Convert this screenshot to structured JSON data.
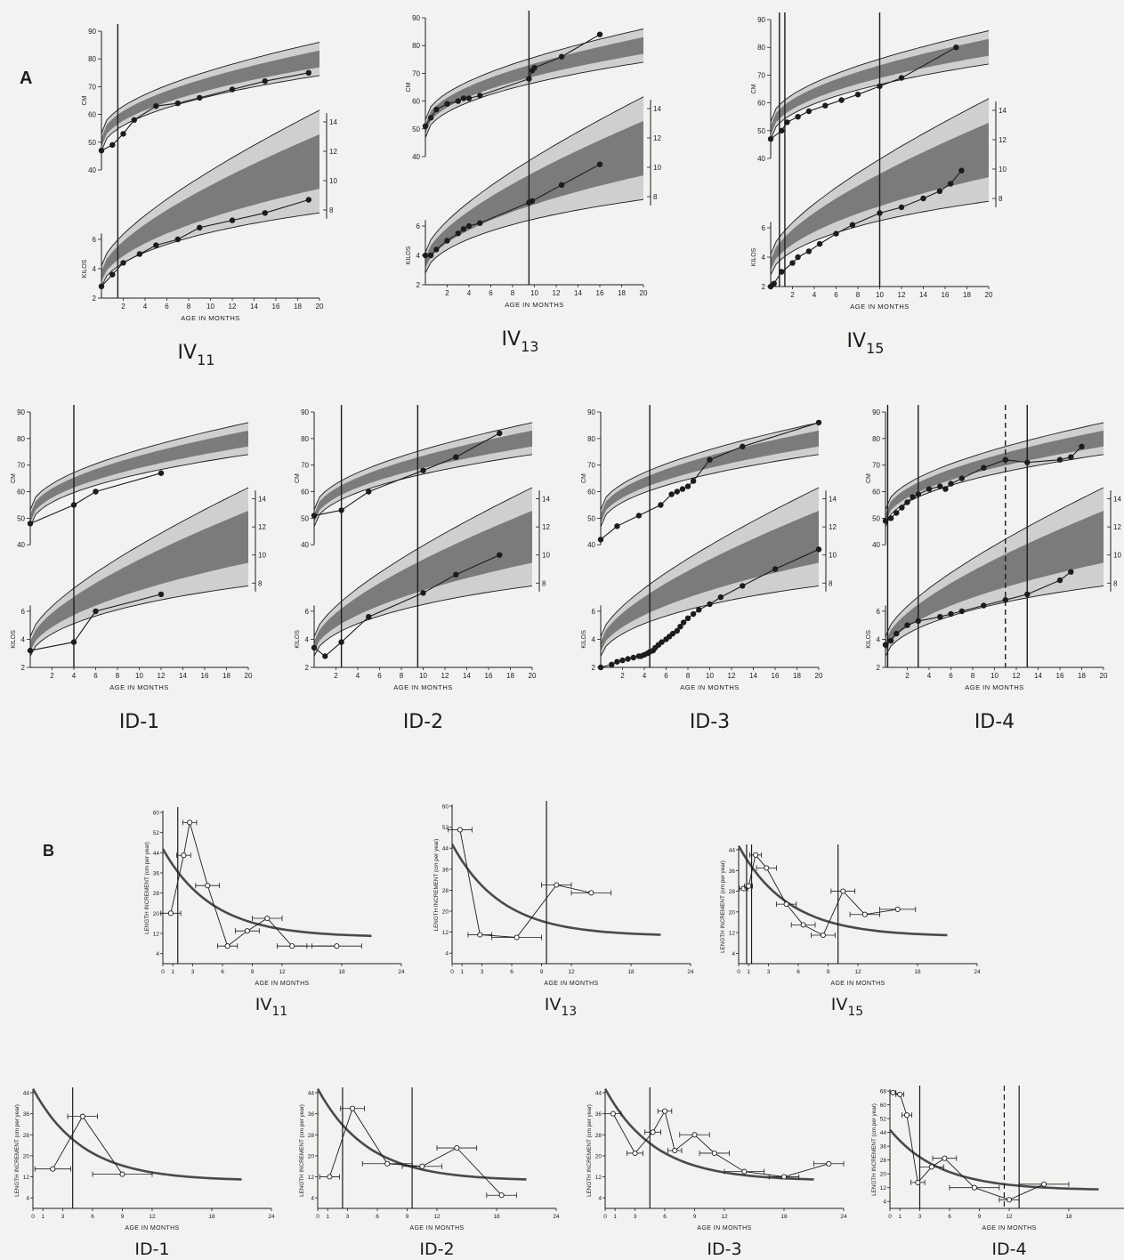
{
  "figure": {
    "panel_a_label": "A",
    "panel_b_label": "B",
    "colors": {
      "ink": "#1c1c1c",
      "band_outer": "#cfcfcd",
      "band_inner": "#7b7b79",
      "background": "#f2f2f0",
      "reference_curve": "#4a4a4a"
    }
  },
  "common": {
    "a_xlabel": "AGE IN MONTHS",
    "a_length_label": "CM",
    "a_weight_label": "KILOS",
    "a_x_ticks": [
      2,
      4,
      6,
      8,
      10,
      12,
      14,
      16,
      18,
      20
    ],
    "a_length_ticks": [
      40,
      50,
      60,
      70,
      80,
      90
    ],
    "a_weight_left_ticks": [
      2,
      4,
      6
    ],
    "a_weight_right_ticks": [
      8,
      10,
      12,
      14
    ],
    "b_xlabel": "AGE IN MONTHS",
    "b_ylabel": "LENGTH INCREMENT (cm per year)",
    "b_x_ticks": [
      0,
      1,
      3,
      6,
      9,
      12,
      18,
      24
    ]
  },
  "chart_data": [
    {
      "panel": "A",
      "name": "IV11",
      "type": "line",
      "title_main": "IV",
      "title_sub": "11",
      "grid": false,
      "xlim": [
        0,
        20
      ],
      "ylim_length": [
        40,
        90
      ],
      "ylim_weight": [
        2,
        14
      ],
      "vlines": [
        {
          "x": 1.5,
          "style": "solid"
        }
      ],
      "series": [
        {
          "metric": "length",
          "unit": "cm",
          "x": [
            0,
            1,
            2,
            3,
            5,
            7,
            9,
            12,
            15,
            19
          ],
          "y": [
            47,
            49,
            53,
            58,
            63,
            64,
            66,
            69,
            72,
            75
          ]
        },
        {
          "metric": "weight",
          "unit": "kg",
          "x": [
            0,
            1,
            2,
            3.5,
            5,
            7,
            9,
            12,
            15,
            19
          ],
          "y": [
            2.8,
            3.6,
            4.4,
            5.0,
            5.6,
            6.0,
            6.8,
            7.3,
            7.8,
            8.7
          ]
        }
      ]
    },
    {
      "panel": "A",
      "name": "IV13",
      "type": "line",
      "title_main": "IV",
      "title_sub": "13",
      "grid": false,
      "xlim": [
        0,
        20
      ],
      "ylim_length": [
        40,
        90
      ],
      "ylim_weight": [
        2,
        14
      ],
      "vlines": [
        {
          "x": 9.5,
          "style": "solid"
        }
      ],
      "series": [
        {
          "metric": "length",
          "unit": "cm",
          "x": [
            0,
            0.5,
            1,
            2,
            3,
            3.5,
            4,
            5,
            9.5,
            9.8,
            10,
            12.5,
            16
          ],
          "y": [
            51,
            54,
            57,
            59,
            60,
            61,
            61,
            62,
            68,
            71,
            72,
            76,
            84
          ]
        },
        {
          "metric": "weight",
          "unit": "kg",
          "x": [
            0,
            0.5,
            1,
            2,
            3,
            3.5,
            4,
            5,
            9.5,
            9.8,
            12.5,
            16
          ],
          "y": [
            4.0,
            4.0,
            4.4,
            5.0,
            5.5,
            5.8,
            6.0,
            6.2,
            7.6,
            7.7,
            8.8,
            10.2
          ]
        }
      ]
    },
    {
      "panel": "A",
      "name": "IV15",
      "type": "line",
      "title_main": "IV",
      "title_sub": "15",
      "grid": false,
      "xlim": [
        0,
        20
      ],
      "ylim_length": [
        40,
        90
      ],
      "ylim_weight": [
        2,
        14
      ],
      "vlines": [
        {
          "x": 0.8,
          "style": "solid"
        },
        {
          "x": 1.3,
          "style": "solid"
        },
        {
          "x": 10,
          "style": "solid"
        }
      ],
      "series": [
        {
          "metric": "length",
          "unit": "cm",
          "x": [
            0,
            1,
            1.5,
            2.5,
            3.5,
            5,
            6.5,
            8,
            10,
            12,
            17
          ],
          "y": [
            47,
            50,
            53,
            55,
            57,
            59,
            61,
            63,
            66,
            69,
            80
          ]
        },
        {
          "metric": "weight",
          "unit": "kg",
          "x": [
            0,
            0.3,
            1,
            2,
            2.5,
            3.5,
            4.5,
            6,
            7.5,
            10,
            12,
            14,
            15.5,
            16.5,
            17.5
          ],
          "y": [
            2.0,
            2.2,
            3.0,
            3.6,
            4.0,
            4.4,
            4.9,
            5.6,
            6.2,
            7.0,
            7.4,
            8.0,
            8.5,
            9.0,
            9.9
          ]
        }
      ]
    },
    {
      "panel": "A",
      "name": "ID-1",
      "type": "line",
      "title_main": "ID-1",
      "title_sub": "",
      "grid": false,
      "xlim": [
        0,
        20
      ],
      "ylim_length": [
        40,
        90
      ],
      "ylim_weight": [
        2,
        14
      ],
      "vlines": [
        {
          "x": 4,
          "style": "solid"
        }
      ],
      "series": [
        {
          "metric": "length",
          "unit": "cm",
          "x": [
            0,
            4,
            6,
            12
          ],
          "y": [
            48,
            55,
            60,
            67
          ]
        },
        {
          "metric": "weight",
          "unit": "kg",
          "x": [
            0,
            4,
            6,
            12
          ],
          "y": [
            3.2,
            3.8,
            6.0,
            7.2
          ]
        }
      ]
    },
    {
      "panel": "A",
      "name": "ID-2",
      "type": "line",
      "title_main": "ID-2",
      "title_sub": "",
      "grid": false,
      "xlim": [
        0,
        20
      ],
      "ylim_length": [
        40,
        90
      ],
      "ylim_weight": [
        2,
        14
      ],
      "vlines": [
        {
          "x": 2.5,
          "style": "solid"
        },
        {
          "x": 9.5,
          "style": "solid"
        }
      ],
      "series": [
        {
          "metric": "length",
          "unit": "cm",
          "x": [
            0,
            2.5,
            5,
            10,
            13,
            17
          ],
          "y": [
            51,
            53,
            60,
            68,
            73,
            82
          ]
        },
        {
          "metric": "weight",
          "unit": "kg",
          "x": [
            0,
            1,
            2.5,
            5,
            10,
            13,
            17
          ],
          "y": [
            3.4,
            2.8,
            3.8,
            5.6,
            7.3,
            8.6,
            10.0
          ]
        }
      ]
    },
    {
      "panel": "A",
      "name": "ID-3",
      "type": "line",
      "title_main": "ID-3",
      "title_sub": "",
      "grid": false,
      "xlim": [
        0,
        20
      ],
      "ylim_length": [
        40,
        90
      ],
      "ylim_weight": [
        2,
        14
      ],
      "vlines": [
        {
          "x": 4.5,
          "style": "solid"
        }
      ],
      "series": [
        {
          "metric": "length",
          "unit": "cm",
          "x": [
            0,
            1.5,
            3.5,
            5.5,
            6.5,
            7,
            7.5,
            8,
            8.5,
            10,
            13,
            20
          ],
          "y": [
            42,
            47,
            51,
            55,
            59,
            60,
            61,
            62,
            64,
            72,
            77,
            86
          ]
        },
        {
          "metric": "weight",
          "unit": "kg",
          "x": [
            0,
            1,
            1.5,
            2,
            2.5,
            3,
            3.5,
            3.7,
            4,
            4.3,
            4.5,
            4.8,
            5,
            5.3,
            5.6,
            6,
            6.3,
            6.6,
            7,
            7.3,
            7.6,
            8,
            8.5,
            9,
            10,
            11,
            13,
            16,
            20
          ],
          "y": [
            2.0,
            2.2,
            2.4,
            2.5,
            2.6,
            2.7,
            2.8,
            2.8,
            2.9,
            3.0,
            3.1,
            3.2,
            3.4,
            3.6,
            3.8,
            4.0,
            4.2,
            4.4,
            4.6,
            4.9,
            5.2,
            5.5,
            5.8,
            6.1,
            6.5,
            7.0,
            7.8,
            9.0,
            10.4
          ]
        }
      ]
    },
    {
      "panel": "A",
      "name": "ID-4",
      "type": "line",
      "title_main": "ID-4",
      "title_sub": "",
      "grid": false,
      "xlim": [
        0,
        20
      ],
      "ylim_length": [
        40,
        90
      ],
      "ylim_weight": [
        2,
        14
      ],
      "vlines": [
        {
          "x": 0.2,
          "style": "solid"
        },
        {
          "x": 3,
          "style": "solid"
        },
        {
          "x": 11,
          "style": "dashed"
        },
        {
          "x": 13,
          "style": "solid"
        }
      ],
      "series": [
        {
          "metric": "length",
          "unit": "cm",
          "x": [
            0,
            0.5,
            1,
            1.5,
            2,
            2.5,
            3,
            4,
            5,
            5.5,
            6,
            7,
            9,
            11,
            13,
            16,
            17,
            18
          ],
          "y": [
            49,
            50,
            52,
            54,
            56,
            58,
            59,
            61,
            62,
            61,
            63,
            65,
            69,
            72,
            71,
            72,
            73,
            77
          ]
        },
        {
          "metric": "weight",
          "unit": "kg",
          "x": [
            0,
            0.5,
            1,
            2,
            3,
            5,
            6,
            7,
            9,
            11,
            13,
            16,
            17
          ],
          "y": [
            3.6,
            3.9,
            4.4,
            5.0,
            5.3,
            5.6,
            5.8,
            6.0,
            6.4,
            6.8,
            7.2,
            8.2,
            8.8
          ]
        }
      ]
    },
    {
      "panel": "B",
      "name": "IV11",
      "type": "line",
      "title_main": "IV",
      "title_sub": "11",
      "grid": false,
      "xlim": [
        0,
        24
      ],
      "ylim": [
        0,
        60
      ],
      "y_ticks": [
        4,
        12,
        20,
        28,
        36,
        44,
        52,
        60
      ],
      "vlines": [
        {
          "x": 1.5,
          "style": "solid"
        }
      ],
      "series": [
        {
          "metric": "length_increment",
          "unit": "cm per year",
          "x": [
            0.8,
            2.1,
            2.7,
            4.5,
            6.5,
            8.5,
            10.5,
            13,
            17.5
          ],
          "y": [
            20,
            43,
            56,
            31,
            7,
            13,
            18,
            7,
            7
          ],
          "xerr": [
            1.0,
            0.7,
            0.7,
            1.2,
            1.0,
            1.2,
            1.5,
            1.5,
            2.5
          ]
        }
      ]
    },
    {
      "panel": "B",
      "name": "IV13",
      "type": "line",
      "title_main": "IV",
      "title_sub": "13",
      "grid": false,
      "xlim": [
        0,
        24
      ],
      "ylim": [
        0,
        60
      ],
      "y_ticks": [
        4,
        12,
        20,
        28,
        36,
        44,
        52,
        60
      ],
      "vlines": [
        {
          "x": 9.5,
          "style": "solid"
        }
      ],
      "series": [
        {
          "metric": "length_increment",
          "unit": "cm per year",
          "x": [
            0.8,
            2.8,
            6.5,
            10.5,
            14
          ],
          "y": [
            51,
            11,
            10,
            30,
            27
          ],
          "xerr": [
            1.2,
            1.2,
            2.5,
            1.5,
            2.0
          ]
        }
      ]
    },
    {
      "panel": "B",
      "name": "IV15",
      "type": "line",
      "title_main": "IV",
      "title_sub": "15",
      "grid": false,
      "xlim": [
        0,
        24
      ],
      "ylim": [
        0,
        44
      ],
      "y_ticks": [
        4,
        12,
        20,
        28,
        36,
        44
      ],
      "vlines": [
        {
          "x": 0.8,
          "style": "solid"
        },
        {
          "x": 1.3,
          "style": "solid"
        },
        {
          "x": 10,
          "style": "solid"
        }
      ],
      "series": [
        {
          "metric": "length_increment",
          "unit": "cm per year",
          "x": [
            0.5,
            1,
            1.7,
            2.8,
            4.8,
            6.5,
            8.5,
            10.5,
            12.7,
            16
          ],
          "y": [
            29,
            30,
            42,
            37,
            23,
            15,
            11,
            28,
            19,
            21
          ],
          "xerr": [
            0.4,
            0.4,
            0.6,
            1.0,
            1.0,
            1.2,
            1.2,
            1.2,
            1.5,
            1.8
          ]
        }
      ]
    },
    {
      "panel": "B",
      "name": "ID-1",
      "type": "line",
      "title_main": "ID-1",
      "title_sub": "",
      "grid": false,
      "xlim": [
        0,
        24
      ],
      "ylim": [
        0,
        44
      ],
      "y_ticks": [
        4,
        12,
        20,
        28,
        36,
        44
      ],
      "vlines": [
        {
          "x": 4,
          "style": "solid"
        }
      ],
      "series": [
        {
          "metric": "length_increment",
          "unit": "cm per year",
          "x": [
            2,
            5,
            9
          ],
          "y": [
            15,
            35,
            13
          ],
          "xerr": [
            1.8,
            1.5,
            3.0
          ]
        }
      ]
    },
    {
      "panel": "B",
      "name": "ID-2",
      "type": "line",
      "title_main": "ID-2",
      "title_sub": "",
      "grid": false,
      "xlim": [
        0,
        24
      ],
      "ylim": [
        0,
        44
      ],
      "y_ticks": [
        4,
        12,
        20,
        28,
        36,
        44
      ],
      "vlines": [
        {
          "x": 2.5,
          "style": "solid"
        },
        {
          "x": 9.5,
          "style": "solid"
        }
      ],
      "series": [
        {
          "metric": "length_increment",
          "unit": "cm per year",
          "x": [
            1.2,
            3.5,
            7,
            10.5,
            14,
            18.5
          ],
          "y": [
            12,
            38,
            17,
            16,
            23,
            5
          ],
          "xerr": [
            1.0,
            1.2,
            2.5,
            2.0,
            2.0,
            1.5
          ]
        }
      ]
    },
    {
      "panel": "B",
      "name": "ID-3",
      "type": "line",
      "title_main": "ID-3",
      "title_sub": "",
      "grid": false,
      "xlim": [
        0,
        24
      ],
      "ylim": [
        0,
        44
      ],
      "y_ticks": [
        4,
        12,
        20,
        28,
        36,
        44
      ],
      "vlines": [
        {
          "x": 4.5,
          "style": "solid"
        }
      ],
      "series": [
        {
          "metric": "length_increment",
          "unit": "cm per year",
          "x": [
            0.8,
            3,
            4.8,
            6,
            7,
            9,
            11,
            14,
            18,
            22.5
          ],
          "y": [
            36,
            21,
            29,
            37,
            22,
            28,
            21,
            14,
            12,
            17
          ],
          "xerr": [
            0.8,
            0.8,
            0.8,
            0.7,
            0.7,
            1.5,
            1.5,
            2.0,
            1.5,
            1.5
          ]
        }
      ]
    },
    {
      "panel": "B",
      "name": "ID-4",
      "type": "line",
      "title_main": "ID-4",
      "title_sub": "",
      "grid": false,
      "xlim": [
        0,
        24
      ],
      "ylim": [
        0,
        68
      ],
      "y_ticks": [
        4,
        12,
        20,
        28,
        36,
        44,
        52,
        60,
        68
      ],
      "vlines": [
        {
          "x": 3,
          "style": "solid"
        },
        {
          "x": 11.5,
          "style": "dashed"
        },
        {
          "x": 13,
          "style": "solid"
        }
      ],
      "series": [
        {
          "metric": "length_increment",
          "unit": "cm per year",
          "x": [
            0.3,
            1,
            1.7,
            2.8,
            4.2,
            5.5,
            8.5,
            12,
            15.5
          ],
          "y": [
            67,
            66,
            54,
            15,
            24,
            29,
            12,
            5,
            14
          ],
          "xerr": [
            0.3,
            0.4,
            0.5,
            0.7,
            1.2,
            1.2,
            2.5,
            1.0,
            2.5
          ]
        }
      ]
    }
  ]
}
